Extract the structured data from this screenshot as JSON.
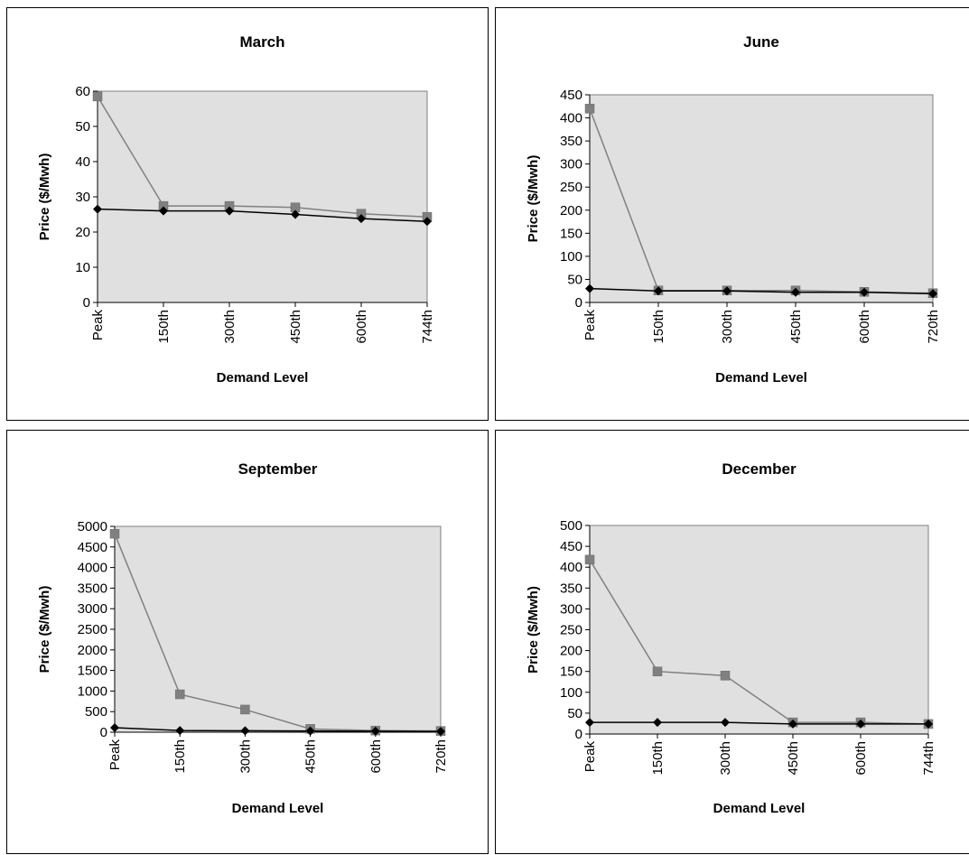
{
  "chart_data": [
    {
      "type": "line",
      "title": "March",
      "xlabel": "Demand Level",
      "ylabel": "Price ($/Mwh)",
      "categories": [
        "Peak",
        "150th",
        "300th",
        "450th",
        "600th",
        "744th"
      ],
      "yticks": [
        "0",
        "10",
        "20",
        "30",
        "40",
        "50",
        "60"
      ],
      "ylim": [
        0,
        60
      ],
      "grid": false,
      "series": [
        {
          "marker": "diamond",
          "color": "#000000",
          "values": [
            26.5,
            26,
            26,
            25,
            23.8,
            23
          ]
        },
        {
          "marker": "square",
          "color": "#808080",
          "values": [
            58.5,
            27.4,
            27.4,
            27,
            25.2,
            24.3
          ]
        }
      ]
    },
    {
      "type": "line",
      "title": "June",
      "xlabel": "Demand Level",
      "ylabel": "Price ($/Mwh)",
      "categories": [
        "Peak",
        "150th",
        "300th",
        "450th",
        "600th",
        "720th"
      ],
      "yticks": [
        "0",
        "50",
        "100",
        "150",
        "200",
        "250",
        "300",
        "350",
        "400",
        "450"
      ],
      "ylim": [
        0,
        450
      ],
      "grid": false,
      "series": [
        {
          "marker": "diamond",
          "color": "#000000",
          "values": [
            30,
            25,
            25,
            22,
            22,
            19
          ]
        },
        {
          "marker": "square",
          "color": "#808080",
          "values": [
            420,
            26,
            26,
            26,
            23,
            20
          ]
        }
      ]
    },
    {
      "type": "line",
      "title": "September",
      "xlabel": "Demand Level",
      "ylabel": "Price ($/Mwh)",
      "categories": [
        "Peak",
        "150th",
        "300th",
        "450th",
        "600th",
        "720th"
      ],
      "yticks": [
        "0",
        "500",
        "1000",
        "1500",
        "2000",
        "2500",
        "3000",
        "3500",
        "4000",
        "4500",
        "5000"
      ],
      "ylim": [
        0,
        5000
      ],
      "grid": false,
      "series": [
        {
          "marker": "diamond",
          "color": "#000000",
          "values": [
            110,
            40,
            35,
            30,
            25,
            20
          ]
        },
        {
          "marker": "square",
          "color": "#808080",
          "values": [
            4820,
            920,
            550,
            80,
            40,
            30
          ]
        }
      ]
    },
    {
      "type": "line",
      "title": "December",
      "xlabel": "Demand Level",
      "ylabel": "Price ($/Mwh)",
      "categories": [
        "Peak",
        "150th",
        "300th",
        "450th",
        "600th",
        "744th"
      ],
      "yticks": [
        "0",
        "50",
        "100",
        "150",
        "200",
        "250",
        "300",
        "350",
        "400",
        "450",
        "500"
      ],
      "ylim": [
        0,
        500
      ],
      "grid": false,
      "series": [
        {
          "marker": "diamond",
          "color": "#000000",
          "values": [
            28,
            28,
            28,
            24,
            24,
            24
          ]
        },
        {
          "marker": "square",
          "color": "#808080",
          "values": [
            418,
            150,
            140,
            28,
            28,
            24
          ]
        }
      ]
    }
  ],
  "colors": {
    "plot_area": "#e0e0e0",
    "line_black": "#000000",
    "line_gray": "#808080",
    "square_marker": "#808080"
  }
}
